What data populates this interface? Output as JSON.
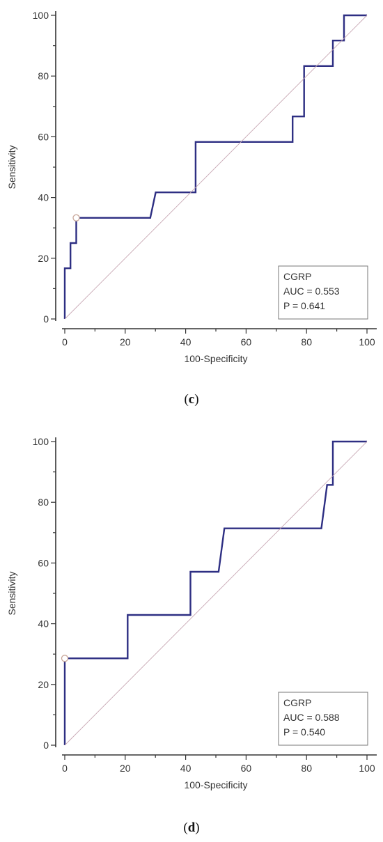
{
  "chart_data": [
    {
      "type": "line",
      "panel_label": "c",
      "xlabel": "100-Specificity",
      "ylabel": "Sensitivity",
      "xlim": [
        0,
        100
      ],
      "ylim": [
        0,
        100
      ],
      "xticks": [
        0,
        20,
        40,
        60,
        80,
        100
      ],
      "yticks": [
        0,
        20,
        40,
        60,
        80,
        100
      ],
      "grid": false,
      "legend_position": "bottom-right",
      "legend": [
        "CGRP",
        "AUC = 0.553",
        "P = 0.641"
      ],
      "series": [
        {
          "name": "CGRP",
          "color": "#2e2f83",
          "x": [
            0,
            0,
            1.9,
            1.9,
            3.8,
            3.8,
            28.3,
            30.1,
            43.3,
            43.3,
            75.4,
            75.4,
            79.2,
            79.2,
            88.7,
            88.7,
            92.4,
            92.4,
            100
          ],
          "y": [
            0,
            16.7,
            16.7,
            25,
            25,
            33.3,
            33.3,
            41.7,
            41.7,
            58.3,
            58.3,
            66.7,
            66.7,
            83.3,
            83.3,
            91.7,
            91.7,
            100,
            100
          ]
        },
        {
          "name": "reference",
          "color": "#c8a8b4",
          "x": [
            0,
            100
          ],
          "y": [
            0,
            100
          ]
        }
      ],
      "highlight_point": {
        "x": 3.8,
        "y": 33.3
      }
    },
    {
      "type": "line",
      "panel_label": "d",
      "xlabel": "100-Specificity",
      "ylabel": "Sensitivity",
      "xlim": [
        0,
        100
      ],
      "ylim": [
        0,
        100
      ],
      "xticks": [
        0,
        20,
        40,
        60,
        80,
        100
      ],
      "yticks": [
        0,
        20,
        40,
        60,
        80,
        100
      ],
      "grid": false,
      "legend_position": "bottom-right",
      "legend": [
        "CGRP",
        "AUC = 0.588",
        "P = 0.540"
      ],
      "series": [
        {
          "name": "CGRP",
          "color": "#2e2f83",
          "x": [
            0,
            0,
            20.8,
            20.8,
            41.6,
            41.6,
            50.9,
            52.8,
            84.9,
            86.8,
            88.7,
            88.7,
            100
          ],
          "y": [
            0,
            28.6,
            28.6,
            42.9,
            42.9,
            57.1,
            57.1,
            71.4,
            71.4,
            85.7,
            85.7,
            100,
            100
          ]
        },
        {
          "name": "reference",
          "color": "#c8a8b4",
          "x": [
            0,
            100
          ],
          "y": [
            0,
            100
          ]
        }
      ],
      "highlight_point": {
        "x": 0,
        "y": 28.6
      }
    }
  ],
  "captions": [
    {
      "open": "(",
      "letter": "c",
      "close": ")"
    },
    {
      "open": "(",
      "letter": "d",
      "close": ")"
    }
  ]
}
